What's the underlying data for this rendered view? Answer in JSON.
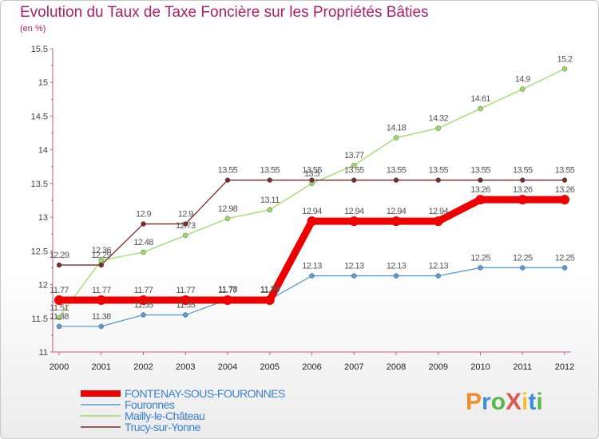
{
  "chart_data": {
    "type": "line",
    "title": "Evolution du Taux de Taxe Foncière sur les Propriétés Bâties",
    "ylabel": "(en %)",
    "xlabel": "",
    "x": [
      "2000",
      "2001",
      "2002",
      "2003",
      "2004",
      "2005",
      "2006",
      "2007",
      "2008",
      "2009",
      "2010",
      "2011",
      "2012"
    ],
    "ylim": [
      11,
      15.5
    ],
    "yticks": [
      "11",
      "11.5",
      "12",
      "12.5",
      "13",
      "13.5",
      "14",
      "14.5",
      "15",
      "15.5"
    ],
    "series": [
      {
        "name": "FONTENAY-SOUS-FOURONNES",
        "color": "#ee0000",
        "width": 9,
        "values": [
          11.77,
          11.77,
          11.77,
          11.77,
          11.77,
          11.77,
          12.94,
          12.94,
          12.94,
          12.94,
          13.26,
          13.26,
          13.26
        ],
        "labels": [
          "11.77",
          "11.77",
          "11.77",
          "11.77",
          "11.77",
          "11.77",
          "12.94",
          "12.94",
          "12.94",
          "12.94",
          "13.26",
          "13.26",
          "13.26"
        ]
      },
      {
        "name": "Fouronnes",
        "color": "#5b9bd5",
        "width": 1.3,
        "values": [
          11.38,
          11.38,
          11.55,
          11.55,
          11.78,
          11.78,
          12.13,
          12.13,
          12.13,
          12.13,
          12.25,
          12.25,
          12.25
        ],
        "labels": [
          "11.38",
          "11.38",
          "11.55",
          "11.55",
          "11.78",
          "11.78",
          "12.13",
          "12.13",
          "12.13",
          "12.13",
          "12.25",
          "12.25",
          "12.25"
        ]
      },
      {
        "name": "Mailly-le-Château",
        "color": "#99dd66",
        "width": 1.3,
        "values": [
          11.51,
          12.36,
          12.48,
          12.73,
          12.98,
          13.11,
          13.5,
          13.77,
          14.18,
          14.32,
          14.61,
          14.9,
          15.2
        ],
        "labels": [
          "11.51",
          "12.36",
          "12.48",
          "12.73",
          "12.98",
          "13.11",
          "13.5",
          "13.77",
          "14.18",
          "14.32",
          "14.61",
          "14.9",
          "15.2"
        ]
      },
      {
        "name": "Trucy-sur-Yonne",
        "color": "#7a2a2a",
        "width": 1.3,
        "values": [
          12.29,
          12.29,
          12.9,
          12.9,
          13.55,
          13.55,
          13.55,
          13.55,
          13.55,
          13.55,
          13.55,
          13.55,
          13.55
        ],
        "labels": [
          "12.29",
          "12.29",
          "12.9",
          "12.9",
          "13.55",
          "13.55",
          "13.55",
          "13.55",
          "13.55",
          "13.55",
          "13.55",
          "13.55",
          "13.55"
        ]
      }
    ]
  },
  "logo": {
    "text": "ProXiti",
    "letters": [
      "P",
      "r",
      "o",
      "X",
      "i",
      "t",
      "i"
    ],
    "colors": [
      "#f28c28",
      "#3b8fd6",
      "#59b848",
      "#e2574c",
      "#f2c12e",
      "#3b8fd6",
      "#59b848"
    ]
  }
}
